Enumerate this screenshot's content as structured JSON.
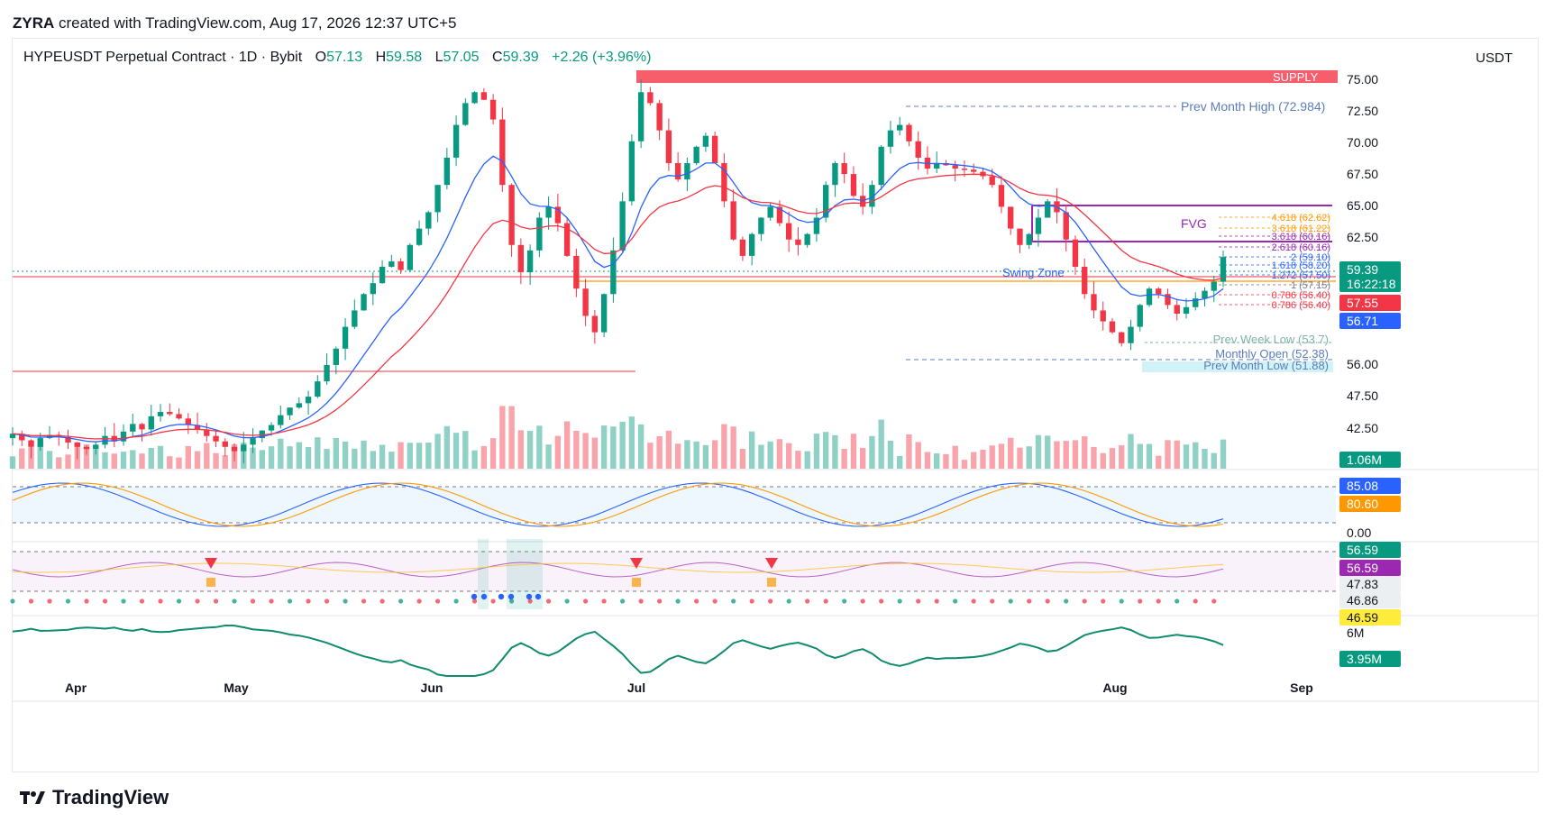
{
  "header": {
    "author": "ZYRA",
    "credit_text": "created with TradingView.com, Aug 17, 2026 12:37 UTC+5"
  },
  "legend": {
    "symbol": "HYPEUSDT Perpetual Contract · 1D · Bybit",
    "open_label": "O",
    "open": "57.13",
    "high_label": "H",
    "high": "59.58",
    "low_label": "L",
    "low": "57.05",
    "close_label": "C",
    "close": "59.39",
    "change": "+2.26 (+3.96%)"
  },
  "quote_currency": "USDT",
  "footer": {
    "brand": "TradingView"
  },
  "colors": {
    "up": "#089981",
    "down": "#f23645",
    "ema_fast": "#2962ff",
    "ema_slow": "#f23645",
    "supply": "#f23645",
    "fvg": "#9c27b0",
    "swing": "#ff9800"
  },
  "chart_data": [
    {
      "type": "candlestick",
      "title": "HYPEUSDT Perpetual Contract · 1D · Bybit",
      "y_axis_ticks": [
        "75.00",
        "72.50",
        "70.00",
        "67.50",
        "65.00",
        "62.50",
        "59.39",
        "57.55",
        "56.71",
        "56.00",
        "47.50",
        "42.50"
      ],
      "x_axis_ticks": [
        "Apr",
        "May",
        "Jun",
        "Jul",
        "Aug",
        "Sep"
      ],
      "ylim": [
        40,
        77
      ],
      "price_badges": [
        {
          "label": "59.39",
          "sub": "16:22:18",
          "color": "#089981"
        },
        {
          "label": "57.55",
          "color": "#f23645"
        },
        {
          "label": "56.71",
          "color": "#2962ff"
        }
      ],
      "volume_badge": "1.06M",
      "annotations": [
        {
          "text": "SUPPLY",
          "color": "#f23645"
        },
        {
          "text": "Prev Month High (72.984)",
          "color": "#5b7cbd"
        },
        {
          "text": "FVG",
          "color": "#9c27b0"
        },
        {
          "text": "Swing Zone",
          "color": "#2962ff"
        },
        {
          "text": "Prev Week Low (53.7)",
          "color": "#7fb3a8"
        },
        {
          "text": "Monthly Open (52.38)",
          "color": "#5b7cbd"
        },
        {
          "text": "Prev Month Low (51.88)",
          "color": "#5b7cbd"
        }
      ],
      "fib_levels": [
        {
          "text": "4.618 (62.62)",
          "color": "#ff9800"
        },
        {
          "text": "3.618 (61.22)",
          "color": "#ff9800"
        },
        {
          "text": "3.618 (60.16)",
          "color": "#9c27b0"
        },
        {
          "text": "2.618 (60.16)",
          "color": "#9c27b0"
        },
        {
          "text": "2 (59.10)",
          "color": "#2962ff"
        },
        {
          "text": "1.618 (58.20)",
          "color": "#2962ff"
        },
        {
          "text": "1.272 (57.50)",
          "color": "#2962ff"
        },
        {
          "text": "1 (57.15)",
          "color": "#787b86"
        },
        {
          "text": "0.786 (56.40)",
          "color": "#f23645"
        },
        {
          "text": "0.786 (56.40)",
          "color": "#f23645"
        }
      ],
      "series_close": [
        43.2,
        42.6,
        42.0,
        42.8,
        43.1,
        42.9,
        42.4,
        42.0,
        41.8,
        42.2,
        43.0,
        42.5,
        43.4,
        44.1,
        43.6,
        44.8,
        45.2,
        45.0,
        44.6,
        44.0,
        43.6,
        43.0,
        42.5,
        42.0,
        41.6,
        42.2,
        42.8,
        43.5,
        44.0,
        44.9,
        45.6,
        46.0,
        46.6,
        48.0,
        49.5,
        51.0,
        53.0,
        54.5,
        56.0,
        57.0,
        58.5,
        59.0,
        58.2,
        60.5,
        62.0,
        63.5,
        66.0,
        68.5,
        71.5,
        73.5,
        74.5,
        73.8,
        72.0,
        66.0,
        60.5,
        58.0,
        60.0,
        63.0,
        64.0,
        62.5,
        59.5,
        56.5,
        54.0,
        52.5,
        56.0,
        60.0,
        64.5,
        70.0,
        74.5,
        73.5,
        71.0,
        68.0,
        66.5,
        68.0,
        69.5,
        70.5,
        68.0,
        64.5,
        61.0,
        59.5,
        61.5,
        63.0,
        64.0,
        62.5,
        61.0,
        60.5,
        61.5,
        63.0,
        66.0,
        68.0,
        67.0,
        65.0,
        64.0,
        66.0,
        69.5,
        71.0,
        71.5,
        70.0,
        68.5,
        67.5,
        68.0,
        67.8,
        67.5,
        67.4,
        67.2,
        66.8,
        66.0,
        64.0,
        62.0,
        60.5,
        61.5,
        63.0,
        64.5,
        63.5,
        61.0,
        58.5,
        56.0,
        54.5,
        53.5,
        52.5,
        51.5,
        53.0,
        55.0,
        56.5,
        56.0,
        55.0,
        54.2,
        54.8,
        55.6,
        56.3,
        57.13,
        59.39
      ]
    },
    {
      "type": "line",
      "title": "",
      "series": [
        {
          "name": "",
          "values": [
            85.08
          ]
        },
        {
          "name": "",
          "values": [
            80.6
          ]
        }
      ],
      "badges": [
        "85.08",
        "80.60",
        "0.00"
      ]
    },
    {
      "type": "line",
      "title": "",
      "badges": [
        "56.59",
        "56.59",
        "47.83",
        "46.86",
        "46.59"
      ]
    },
    {
      "type": "line",
      "title": "",
      "badges": [
        "6M",
        "3.95M"
      ]
    }
  ]
}
